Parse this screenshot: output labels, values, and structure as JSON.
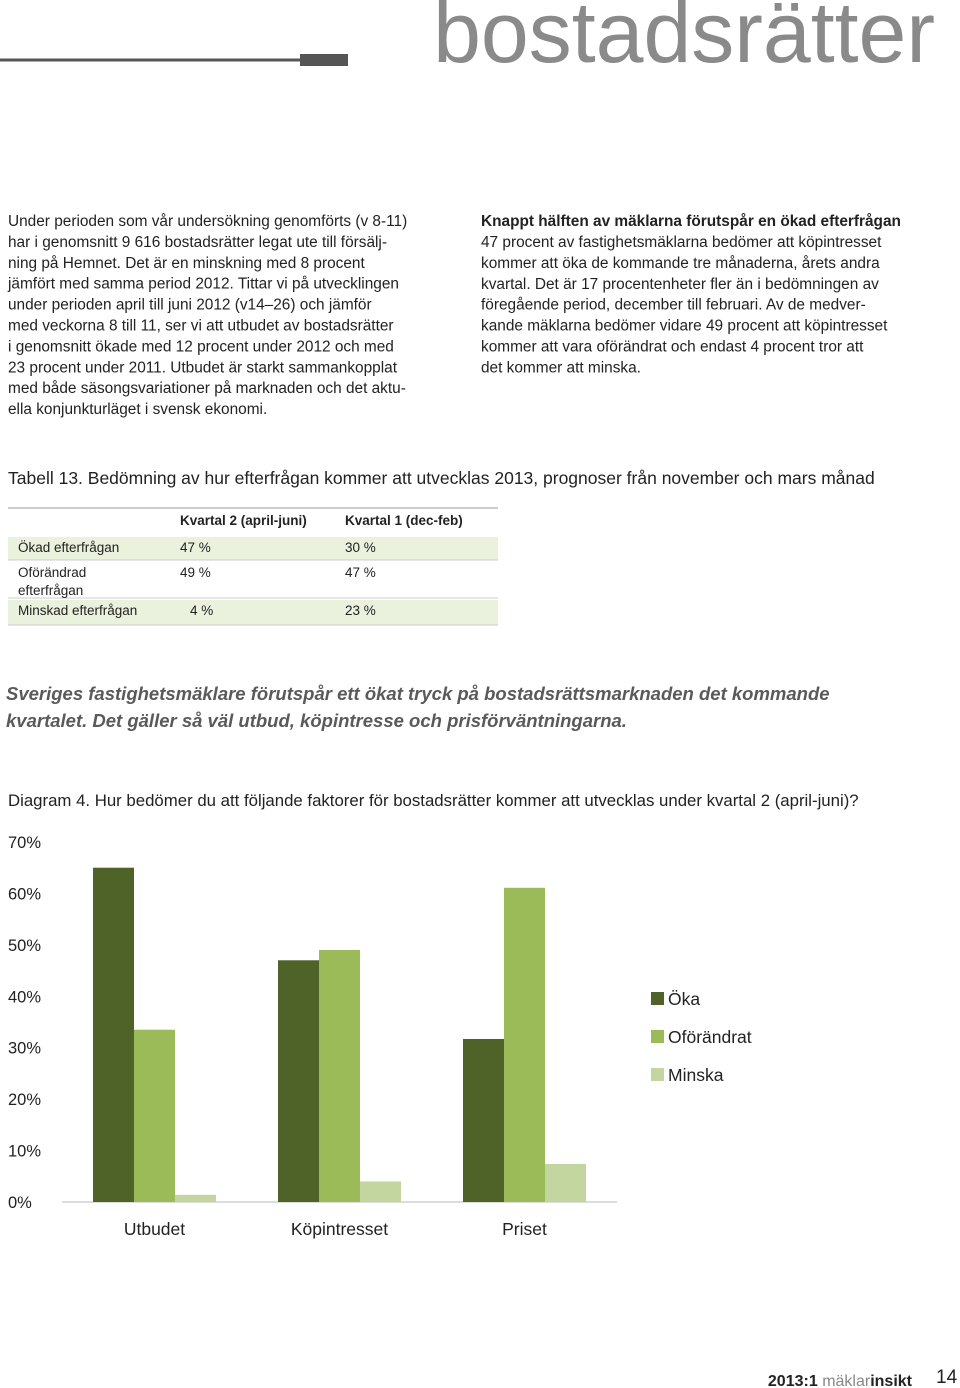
{
  "header": {
    "title": "bostadsrätter"
  },
  "left_column": {
    "lines": [
      "Under perioden som vår undersökning genomförts (v 8-11)",
      "har i genomsnitt 9 616 bostadsrätter legat ute till försälj-",
      "ning på Hemnet. Det är en minskning med 8 procent",
      "jämfört med samma period 2012. Tittar vi på utvecklingen",
      "under perioden april till juni 2012 (v14–26) och jämför",
      "med veckorna 8 till 11, ser vi att utbudet av bostadsrätter",
      "i genomsnitt ökade med 12 procent under 2012 och med",
      "23 procent under 2011. Utbudet är starkt sammankopplat",
      "med både säsongsvariationer på marknaden och det aktu-",
      "ella konjunkturläget i svensk ekonomi."
    ]
  },
  "right_column": {
    "heading": "Knappt hälften av mäklarna förutspår en ökad efterfrågan",
    "lines": [
      "47 procent av fastighetsmäklarna bedömer att köpintresset",
      "kommer att öka de kommande tre månaderna, årets andra",
      "kvartal. Det är 17 procentenheter fler än i bedömningen av",
      "föregående period, december till februari. Av de medver-",
      "kande mäklarna bedömer vidare 49 procent att köpintresset",
      "kommer att vara oförändrat och endast 4 procent tror att",
      "det kommer att minska."
    ]
  },
  "table": {
    "caption": "Tabell 13. Bedömning av hur efterfrågan kommer att utvecklas 2013, prognoser från november och mars månad",
    "header": [
      "Kvartal 2 (april-juni)",
      "Kvartal 1 (dec-feb)"
    ],
    "rows": [
      [
        [
          "Ökad efterfrågan"
        ],
        "47 %",
        "30 %"
      ],
      [
        [
          "Oförändrad",
          "efterfrågan"
        ],
        "49 %",
        "47 %"
      ],
      [
        [
          "Minskad efterfrågan"
        ],
        "4 %",
        "23 %"
      ]
    ]
  },
  "highlight": {
    "lines": [
      "Sveriges fastighetsmäklare förutspår ett ökat tryck på bostadsrättsmarknaden det kommande",
      "kvartalet. Det gäller så väl utbud, köpintresse och prisförväntningarna."
    ]
  },
  "diagram_caption": "Diagram 4. Hur bedömer du att följande faktorer för bostadsrätter kommer att utvecklas under kvartal 2 (april-juni)?",
  "chart_data": {
    "type": "bar",
    "categories": [
      "Utbudet",
      "Köpintresset",
      "Priset"
    ],
    "series": [
      {
        "name": "Öka",
        "color": "#4f6228",
        "values": [
          65,
          47,
          31.7
        ]
      },
      {
        "name": "Oförändrat",
        "color": "#9bbb59",
        "values": [
          33.5,
          49,
          61.1
        ]
      },
      {
        "name": "Minska",
        "color": "#c4d6a0",
        "values": [
          1.4,
          4,
          7.4
        ]
      }
    ],
    "ylim": [
      0,
      70
    ],
    "yticks": [
      {
        "value": 0,
        "label": "0%"
      },
      {
        "value": 10,
        "label": "10%"
      },
      {
        "value": 20,
        "label": "20%"
      },
      {
        "value": 30,
        "label": "30%"
      },
      {
        "value": 40,
        "label": "40%"
      },
      {
        "value": 50,
        "label": "50%"
      },
      {
        "value": 60,
        "label": "60%"
      },
      {
        "value": 70,
        "label": "70%"
      }
    ],
    "legend": "right"
  },
  "footer": {
    "issue": "2013:1",
    "brand_first": "mäklar",
    "brand_second": "insikt",
    "page": "14"
  }
}
